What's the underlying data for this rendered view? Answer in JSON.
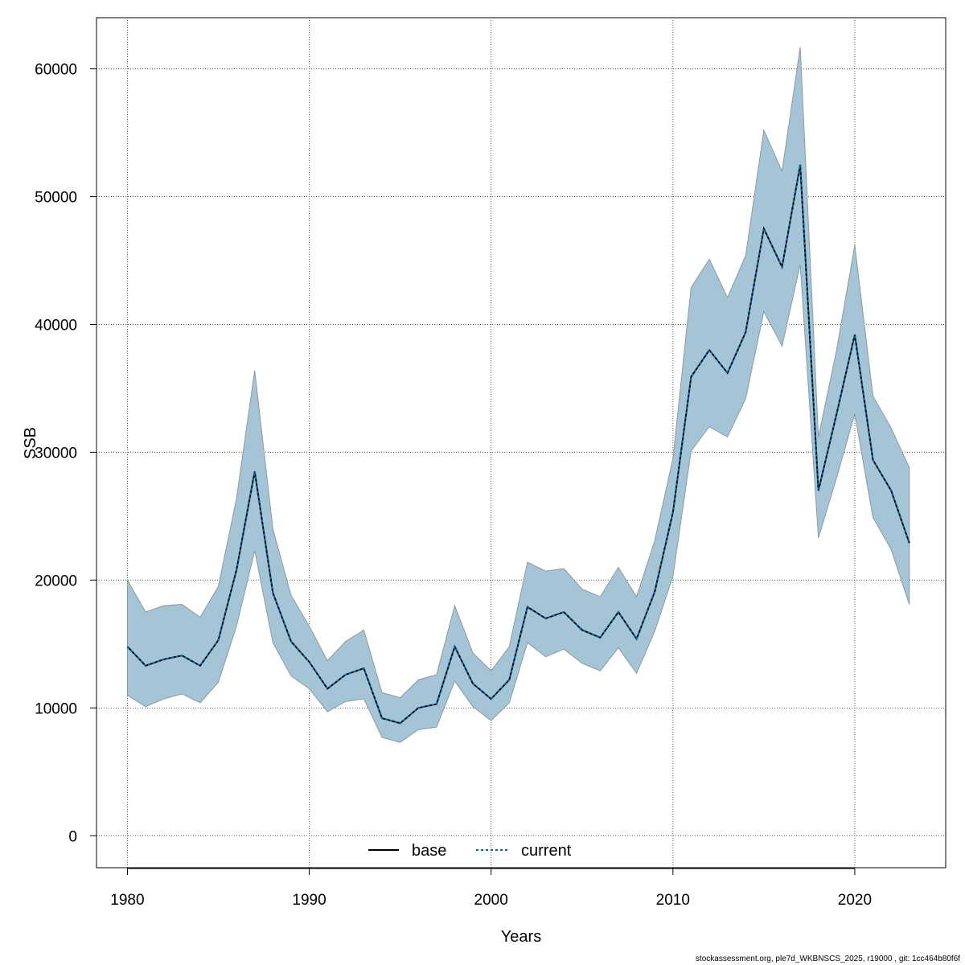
{
  "footer": "stockassessment.org, ple7d_WKBNSCS_2025, r19000 , git: 1cc464b80f6f",
  "colors": {
    "band": "#a5c5d6",
    "band_edge": "#8a9aa3",
    "base": "#000000",
    "current": "#006aa6",
    "grid": "#555555"
  },
  "chart_data": {
    "type": "line",
    "title": "",
    "xlabel": "Years",
    "ylabel": "SSB",
    "xlim": [
      1978.3,
      2025.0
    ],
    "ylim": [
      -2500,
      64000
    ],
    "x_ticks": [
      1980,
      1990,
      2000,
      2010,
      2020
    ],
    "y_ticks": [
      0,
      10000,
      20000,
      30000,
      40000,
      50000,
      60000
    ],
    "grid": true,
    "legend": {
      "position": "bottom-center",
      "entries": [
        {
          "name": "base",
          "style": "solid"
        },
        {
          "name": "current",
          "style": "dashed"
        }
      ]
    },
    "x": [
      1980,
      1981,
      1982,
      1983,
      1984,
      1985,
      1986,
      1987,
      1988,
      1989,
      1990,
      1991,
      1992,
      1993,
      1994,
      1995,
      1996,
      1997,
      1998,
      1999,
      2000,
      2001,
      2002,
      2003,
      2004,
      2005,
      2006,
      2007,
      2008,
      2009,
      2010,
      2011,
      2012,
      2013,
      2014,
      2015,
      2016,
      2017,
      2018,
      2019,
      2020,
      2021,
      2022,
      2023
    ],
    "series": [
      {
        "name": "base",
        "values": [
          14800,
          13300,
          13800,
          14100,
          13300,
          15300,
          20800,
          28500,
          19000,
          15200,
          13600,
          11500,
          12600,
          13100,
          9200,
          8800,
          10000,
          10300,
          14800,
          11900,
          10700,
          12200,
          17900,
          17000,
          17500,
          16100,
          15500,
          17500,
          15400,
          19100,
          25300,
          35900,
          38000,
          36200,
          39400,
          47500,
          44500,
          52500,
          27000,
          33000,
          39200,
          29400,
          27000,
          22900
        ]
      },
      {
        "name": "current",
        "values": [
          14800,
          13300,
          13800,
          14100,
          13300,
          15300,
          20800,
          28500,
          19000,
          15200,
          13600,
          11500,
          12600,
          13100,
          9200,
          8800,
          10000,
          10300,
          14800,
          11900,
          10700,
          12200,
          17900,
          17000,
          17500,
          16100,
          15500,
          17500,
          15400,
          19100,
          25300,
          35900,
          38000,
          36200,
          39400,
          47500,
          44500,
          52500,
          27000,
          33000,
          39200,
          29400,
          27000,
          22900
        ]
      }
    ],
    "confidence_band": {
      "lower": [
        11000,
        10100,
        10700,
        11100,
        10400,
        12000,
        16400,
        22300,
        15100,
        12500,
        11500,
        9700,
        10500,
        10700,
        7700,
        7300,
        8300,
        8500,
        12100,
        10100,
        9000,
        10400,
        15100,
        14000,
        14600,
        13500,
        12900,
        14700,
        12700,
        16000,
        20300,
        30100,
        32000,
        31200,
        34200,
        41000,
        38300,
        44700,
        23300,
        28000,
        33000,
        24900,
        22400,
        18100
      ],
      "upper": [
        20000,
        17500,
        18000,
        18100,
        17100,
        19500,
        26400,
        36400,
        24000,
        18800,
        16400,
        13700,
        15200,
        16100,
        11200,
        10800,
        12200,
        12600,
        18000,
        14300,
        12900,
        14800,
        21400,
        20700,
        20900,
        19300,
        18700,
        21000,
        18700,
        23100,
        29500,
        42900,
        45100,
        42100,
        45400,
        55200,
        52000,
        61700,
        31200,
        38000,
        46200,
        34400,
        31900,
        28800
      ]
    }
  }
}
